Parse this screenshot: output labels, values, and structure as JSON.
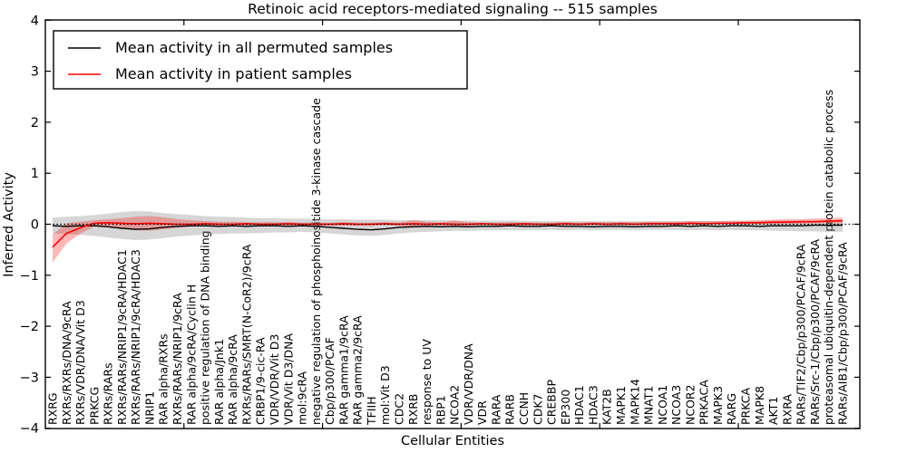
{
  "title": "Retinoic acid receptors-mediated signaling -- 515 samples",
  "axes": {
    "xlabel": "Cellular Entities",
    "ylabel": "Inferred Activity",
    "ytick_labels": [
      "4",
      "3",
      "2",
      "1",
      "0",
      "−1",
      "−2",
      "−3",
      "−4"
    ],
    "ytick_values": [
      4,
      3,
      2,
      1,
      0,
      -1,
      -2,
      -3,
      -4
    ],
    "ylim": [
      -4,
      4
    ]
  },
  "legend": {
    "items": [
      {
        "label": "Mean activity in all permuted samples",
        "color": "#000000"
      },
      {
        "label": "Mean activity in patient samples",
        "color": "#ff0000"
      }
    ]
  },
  "colors": {
    "permuted_line": "#000000",
    "patient_line": "#ff0000",
    "permuted_band": "#8a8a8a",
    "patient_band": "#ff0000",
    "zero_line": "#000000",
    "frame": "#000000"
  },
  "chart_data": {
    "type": "line",
    "title": "Retinoic acid receptors-mediated signaling -- 515 samples",
    "xlabel": "Cellular Entities",
    "ylabel": "Inferred Activity",
    "ylim": [
      -4,
      4
    ],
    "grid": false,
    "legend_position": "upper left",
    "zero_reference_line": true,
    "categories": [
      "RXRG",
      "RXRs/RXRs/DNA/9cRA",
      "RXRs/VDR/DNA/Vit D3",
      "PRKCG",
      "RXRs/RARs",
      "RXRs/RARs/NRIP1/9cRA/HDAC1",
      "RXRs/RARs/NRIP1/9cRA/HDAC3",
      "NRIP1",
      "RAR alpha/RXRs",
      "RXRs/RARs/NRIP1/9cRA",
      "RAR alpha/9cRA/Cyclin H",
      "positive regulation of DNA binding",
      "RAR alpha/Jnk1",
      "RAR alpha/9cRA",
      "RXRs/RARs/SMRT(N-CoR2)/9cRA",
      "CRBP1/9-cic-RA",
      "VDR/VDR/Vit D3",
      "VDR/Vit D3/DNA",
      "mol:9cRA",
      "negative regulation of phosphoinositide 3-kinase cascade",
      "Cbp/p300/PCAF",
      "RAR gamma1/9cRA",
      "RAR gamma2/9cRA",
      "TFIIH",
      "mol:Vit D3",
      "CDC2",
      "RXRB",
      "response to UV",
      "RBP1",
      "NCOA2",
      "VDR/VDR/DNA",
      "VDR",
      "RARA",
      "RARB",
      "CCNH",
      "CDK7",
      "CREBBP",
      "EP300",
      "HDAC1",
      "HDAC3",
      "KAT2B",
      "MAPK1",
      "MAPK14",
      "MNAT1",
      "NCOA1",
      "NCOA3",
      "NCOR2",
      "PRKACA",
      "MAPK3",
      "RARG",
      "PRKCA",
      "MAPK8",
      "AKT1",
      "RXRA",
      "RARs/TIF2/Cbp/p300/PCAF/9cRA",
      "RARs/Src-1/Cbp/p300/PCAF/9cRA",
      "proteasomal ubiquitin-dependent protein catabolic process",
      "RARs/AIB1/Cbp/p300/PCAF/9cRA"
    ],
    "series": [
      {
        "name": "Mean activity in all permuted samples",
        "color": "#000000",
        "values": [
          -0.03,
          -0.04,
          -0.03,
          -0.03,
          -0.05,
          -0.08,
          -0.1,
          -0.09,
          -0.06,
          -0.04,
          -0.03,
          -0.03,
          -0.04,
          -0.03,
          -0.04,
          -0.03,
          -0.03,
          -0.04,
          -0.03,
          -0.04,
          -0.06,
          -0.08,
          -0.1,
          -0.11,
          -0.09,
          -0.06,
          -0.05,
          -0.04,
          -0.05,
          -0.04,
          -0.05,
          -0.04,
          -0.04,
          -0.03,
          -0.04,
          -0.04,
          -0.03,
          -0.04,
          -0.04,
          -0.05,
          -0.04,
          -0.04,
          -0.05,
          -0.04,
          -0.04,
          -0.03,
          -0.04,
          -0.03,
          -0.04,
          -0.03,
          -0.03,
          -0.04,
          -0.03,
          -0.03,
          -0.03,
          -0.02,
          -0.02,
          -0.02
        ]
      },
      {
        "name": "Mean activity in patient samples",
        "color": "#ff0000",
        "values": [
          -0.45,
          -0.18,
          -0.07,
          0.02,
          0.03,
          0.02,
          0.01,
          0.02,
          0.01,
          0.0,
          0.0,
          0.01,
          0.0,
          0.0,
          0.01,
          0.0,
          0.0,
          0.01,
          0.0,
          0.0,
          0.0,
          0.01,
          0.0,
          0.0,
          0.01,
          0.0,
          0.01,
          0.0,
          0.01,
          0.0,
          0.0,
          0.01,
          0.0,
          0.0,
          0.01,
          0.0,
          0.0,
          0.01,
          0.0,
          0.01,
          0.0,
          0.01,
          0.0,
          0.01,
          0.01,
          0.01,
          0.02,
          0.01,
          0.02,
          0.02,
          0.03,
          0.03,
          0.04,
          0.04,
          0.05,
          0.05,
          0.06,
          0.07
        ]
      }
    ],
    "bands": [
      {
        "name": "permuted-band",
        "color": "#8a8a8a",
        "opacity": 0.35,
        "upper": [
          0.13,
          0.15,
          0.16,
          0.18,
          0.21,
          0.24,
          0.26,
          0.25,
          0.22,
          0.2,
          0.18,
          0.16,
          0.15,
          0.14,
          0.13,
          0.12,
          0.12,
          0.11,
          0.11,
          0.1,
          0.1,
          0.1,
          0.09,
          0.09,
          0.09,
          0.08,
          0.08,
          0.08,
          0.08,
          0.07,
          0.07,
          0.07,
          0.07,
          0.07,
          0.07,
          0.06,
          0.06,
          0.06,
          0.06,
          0.06,
          0.06,
          0.06,
          0.06,
          0.06,
          0.06,
          0.06,
          0.06,
          0.06,
          0.06,
          0.06,
          0.06,
          0.06,
          0.07,
          0.07,
          0.07,
          0.07,
          0.08,
          0.08
        ],
        "lower": [
          -0.18,
          -0.2,
          -0.21,
          -0.23,
          -0.26,
          -0.29,
          -0.31,
          -0.3,
          -0.27,
          -0.24,
          -0.22,
          -0.2,
          -0.19,
          -0.18,
          -0.18,
          -0.17,
          -0.16,
          -0.16,
          -0.15,
          -0.16,
          -0.18,
          -0.2,
          -0.22,
          -0.23,
          -0.21,
          -0.18,
          -0.16,
          -0.15,
          -0.14,
          -0.13,
          -0.13,
          -0.12,
          -0.12,
          -0.12,
          -0.12,
          -0.12,
          -0.11,
          -0.12,
          -0.11,
          -0.12,
          -0.11,
          -0.11,
          -0.12,
          -0.11,
          -0.11,
          -0.11,
          -0.12,
          -0.11,
          -0.12,
          -0.11,
          -0.12,
          -0.12,
          -0.13,
          -0.13,
          -0.14,
          -0.14,
          -0.15,
          -0.15
        ]
      },
      {
        "name": "patient-band",
        "color": "#ff0000",
        "opacity": 0.28,
        "upper": [
          -0.2,
          0.02,
          0.05,
          0.08,
          0.1,
          0.12,
          0.15,
          0.16,
          0.14,
          0.1,
          0.08,
          0.06,
          0.05,
          0.05,
          0.04,
          0.04,
          0.04,
          0.04,
          0.03,
          0.03,
          0.03,
          0.04,
          0.03,
          0.03,
          0.04,
          0.03,
          0.08,
          0.05,
          0.03,
          0.08,
          0.04,
          0.03,
          0.03,
          0.04,
          0.03,
          0.03,
          0.03,
          0.04,
          0.03,
          0.04,
          0.04,
          0.04,
          0.04,
          0.05,
          0.05,
          0.05,
          0.06,
          0.06,
          0.06,
          0.07,
          0.07,
          0.08,
          0.09,
          0.1,
          0.1,
          0.11,
          0.12,
          0.13
        ],
        "lower": [
          -0.75,
          -0.38,
          -0.18,
          -0.05,
          -0.05,
          -0.08,
          -0.12,
          -0.13,
          -0.1,
          -0.07,
          -0.05,
          -0.04,
          -0.04,
          -0.03,
          -0.03,
          -0.03,
          -0.03,
          -0.03,
          -0.03,
          -0.03,
          -0.03,
          -0.03,
          -0.03,
          -0.03,
          -0.02,
          -0.03,
          -0.06,
          -0.04,
          -0.03,
          -0.05,
          -0.03,
          -0.02,
          -0.03,
          -0.02,
          -0.03,
          -0.02,
          -0.03,
          -0.02,
          -0.02,
          -0.02,
          -0.02,
          -0.02,
          -0.02,
          -0.02,
          -0.01,
          -0.02,
          -0.01,
          -0.01,
          0.0,
          0.0,
          0.0,
          0.0,
          0.0,
          0.01,
          0.01,
          0.02,
          0.02,
          0.02
        ]
      }
    ]
  }
}
